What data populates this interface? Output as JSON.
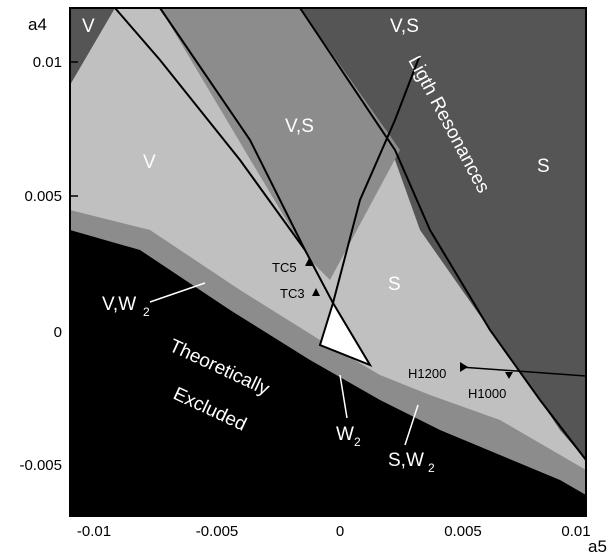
{
  "chart_data": {
    "type": "area",
    "title": "",
    "xlabel": "a5",
    "ylabel": "a4",
    "xlim": [
      -0.0115,
      0.01
    ],
    "ylim": [
      -0.0068,
      0.012
    ],
    "xticks": [
      "-0.01",
      "-0.005",
      "0",
      "0.005",
      "0.01"
    ],
    "yticks": [
      "-0.005",
      "0",
      "0.005",
      "0.01"
    ],
    "colors": {
      "excluded": "#000000",
      "v_w2_band": "#8c8c8c",
      "light_gray": "#c0c0c0",
      "mid_gray": "#8c8c8c",
      "dark_gray": "#555555",
      "allowed": "#ffffff"
    },
    "regions": [
      {
        "label": "V",
        "color": "light_gray"
      },
      {
        "label": "V,S",
        "color": "mid_gray"
      },
      {
        "label": "V,S",
        "color": "dark_gray"
      },
      {
        "label": "S",
        "color": "light_gray"
      },
      {
        "label": "S",
        "color": "dark_gray"
      },
      {
        "label": "V",
        "color": "dark_gray"
      },
      {
        "label": "Theoretically Excluded",
        "color": "excluded"
      }
    ],
    "annotations": [
      {
        "text": "Ligth Resonances"
      },
      {
        "text": "V,W2"
      },
      {
        "text": "W2"
      },
      {
        "text": "S,W2"
      },
      {
        "text": "TC5"
      },
      {
        "text": "TC3"
      },
      {
        "text": "H1200"
      },
      {
        "text": "H1000"
      }
    ]
  },
  "labels": {
    "V_top_left": "V",
    "VS_top": "V,S",
    "VS_center": "V,S",
    "V_left": "V",
    "S_center": "S",
    "S_right": "S",
    "light_res": "Ligth Resonances",
    "excluded_1": "Theoretically",
    "excluded_2": "Excluded",
    "vw2": "V,W",
    "w2": "W",
    "sw2": "S,W",
    "sub2": "2",
    "tc5": "TC5",
    "tc3": "TC3",
    "h1200": "H1200",
    "h1000": "H1000"
  }
}
